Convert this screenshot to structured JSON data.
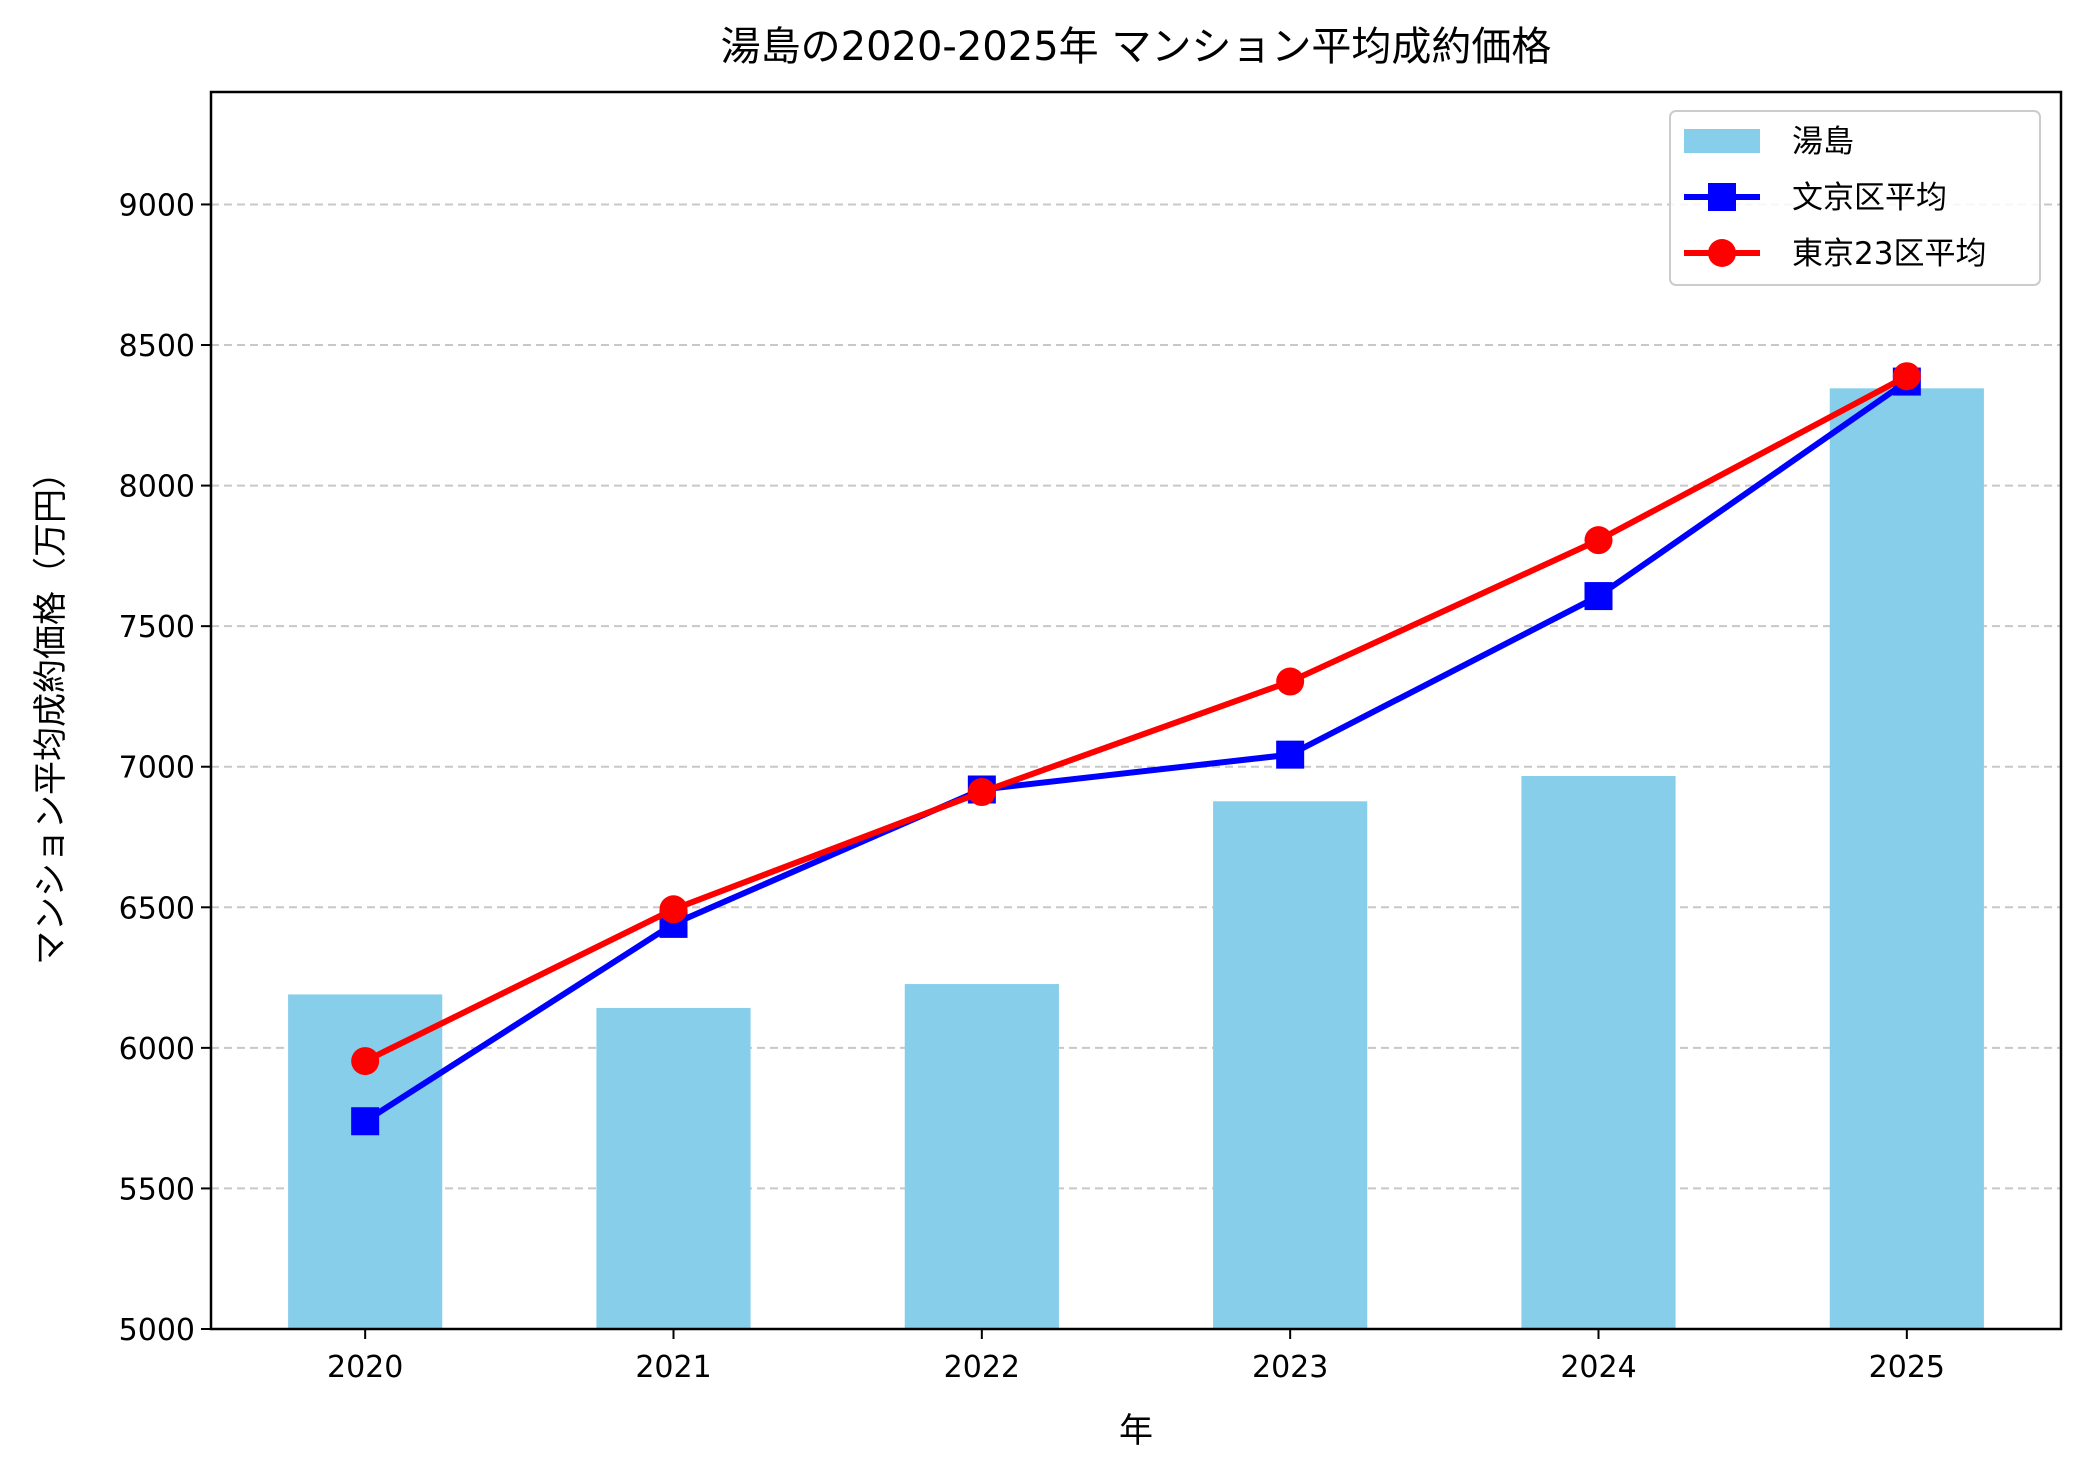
{
  "chart_data": {
    "type": "bar",
    "title": "湯島の2020-2025年 マンション平均成約価格",
    "xlabel": "年",
    "ylabel": "マンション平均成約価格（万円）",
    "categories": [
      "2020",
      "2021",
      "2022",
      "2023",
      "2024",
      "2025"
    ],
    "ylim": [
      5000,
      9400
    ],
    "yticks": [
      5000,
      5500,
      6000,
      6500,
      7000,
      7500,
      8000,
      8500,
      9000
    ],
    "grid": "y dashed",
    "legend_position": "top-right",
    "series": [
      {
        "name": "湯島",
        "kind": "bar",
        "color": "#87CEEB",
        "values": [
          6190,
          6142,
          6227,
          6877,
          6967,
          8346
        ]
      },
      {
        "name": "文京区平均",
        "kind": "line",
        "marker": "square",
        "color": "#0000FF",
        "values": [
          5739,
          6441,
          6919,
          7043,
          7607,
          8370
        ]
      },
      {
        "name": "東京23区平均",
        "kind": "line",
        "marker": "circle",
        "color": "#FF0000",
        "values": [
          5953,
          6493,
          6910,
          7303,
          7806,
          8389
        ]
      }
    ]
  }
}
